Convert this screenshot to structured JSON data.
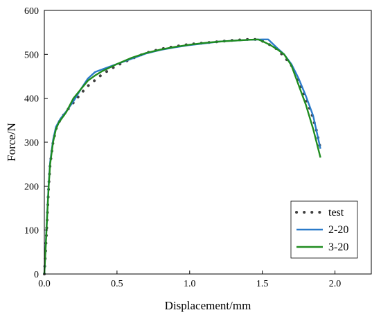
{
  "chart_data": {
    "type": "line",
    "title": "",
    "xlabel": "Displacement/mm",
    "ylabel": "Force/N",
    "xlim": [
      0,
      2.25
    ],
    "ylim": [
      0,
      600
    ],
    "x_ticks": [
      0.0,
      0.5,
      1.0,
      1.5,
      2.0
    ],
    "x_tick_labels": [
      "0.0",
      "0.5",
      "1.0",
      "1.5",
      "2.0"
    ],
    "y_ticks": [
      0,
      100,
      200,
      300,
      400,
      500,
      600
    ],
    "y_tick_labels": [
      "0",
      "100",
      "200",
      "300",
      "400",
      "500",
      "600"
    ],
    "grid": false,
    "legend_position": "bottom-right",
    "series": [
      {
        "name": "test",
        "style": "dotted",
        "color": "#404040",
        "points": [
          [
            0.0,
            0
          ],
          [
            0.01,
            60
          ],
          [
            0.02,
            130
          ],
          [
            0.03,
            200
          ],
          [
            0.04,
            250
          ],
          [
            0.06,
            300
          ],
          [
            0.08,
            330
          ],
          [
            0.11,
            352
          ],
          [
            0.15,
            370
          ],
          [
            0.2,
            390
          ],
          [
            0.25,
            410
          ],
          [
            0.3,
            428
          ],
          [
            0.4,
            455
          ],
          [
            0.5,
            475
          ],
          [
            0.6,
            490
          ],
          [
            0.7,
            503
          ],
          [
            0.8,
            512
          ],
          [
            0.9,
            518
          ],
          [
            1.0,
            523
          ],
          [
            1.1,
            526
          ],
          [
            1.2,
            529
          ],
          [
            1.3,
            532
          ],
          [
            1.4,
            534
          ],
          [
            1.45,
            534
          ],
          [
            1.5,
            530
          ],
          [
            1.55,
            522
          ],
          [
            1.6,
            512
          ],
          [
            1.65,
            495
          ],
          [
            1.7,
            475
          ],
          [
            1.75,
            440
          ],
          [
            1.8,
            398
          ],
          [
            1.84,
            365
          ],
          [
            1.87,
            330
          ],
          [
            1.9,
            285
          ]
        ]
      },
      {
        "name": "2-20",
        "style": "solid",
        "color": "#2a7ac9",
        "points": [
          [
            0.0,
            0
          ],
          [
            0.01,
            70
          ],
          [
            0.02,
            140
          ],
          [
            0.03,
            205
          ],
          [
            0.04,
            255
          ],
          [
            0.06,
            305
          ],
          [
            0.08,
            335
          ],
          [
            0.11,
            353
          ],
          [
            0.15,
            370
          ],
          [
            0.2,
            393
          ],
          [
            0.25,
            420
          ],
          [
            0.3,
            445
          ],
          [
            0.35,
            460
          ],
          [
            0.4,
            466
          ],
          [
            0.5,
            478
          ],
          [
            0.6,
            490
          ],
          [
            0.7,
            502
          ],
          [
            0.8,
            510
          ],
          [
            0.9,
            516
          ],
          [
            1.0,
            521
          ],
          [
            1.1,
            525
          ],
          [
            1.2,
            529
          ],
          [
            1.3,
            531
          ],
          [
            1.4,
            533
          ],
          [
            1.5,
            534
          ],
          [
            1.54,
            534
          ],
          [
            1.6,
            515
          ],
          [
            1.65,
            500
          ],
          [
            1.7,
            478
          ],
          [
            1.75,
            445
          ],
          [
            1.8,
            405
          ],
          [
            1.85,
            360
          ],
          [
            1.9,
            285
          ]
        ]
      },
      {
        "name": "3-20",
        "style": "solid",
        "color": "#1f8c1f",
        "points": [
          [
            0.0,
            0
          ],
          [
            0.01,
            65
          ],
          [
            0.02,
            135
          ],
          [
            0.03,
            200
          ],
          [
            0.04,
            250
          ],
          [
            0.06,
            300
          ],
          [
            0.08,
            330
          ],
          [
            0.1,
            345
          ],
          [
            0.15,
            368
          ],
          [
            0.2,
            400
          ],
          [
            0.25,
            420
          ],
          [
            0.3,
            440
          ],
          [
            0.35,
            452
          ],
          [
            0.4,
            462
          ],
          [
            0.5,
            478
          ],
          [
            0.6,
            492
          ],
          [
            0.7,
            503
          ],
          [
            0.8,
            511
          ],
          [
            0.9,
            517
          ],
          [
            1.0,
            522
          ],
          [
            1.1,
            526
          ],
          [
            1.2,
            529
          ],
          [
            1.3,
            531
          ],
          [
            1.4,
            533
          ],
          [
            1.47,
            534
          ],
          [
            1.5,
            530
          ],
          [
            1.55,
            522
          ],
          [
            1.6,
            512
          ],
          [
            1.65,
            500
          ],
          [
            1.7,
            475
          ],
          [
            1.75,
            430
          ],
          [
            1.8,
            385
          ],
          [
            1.85,
            330
          ],
          [
            1.9,
            265
          ]
        ]
      }
    ]
  }
}
